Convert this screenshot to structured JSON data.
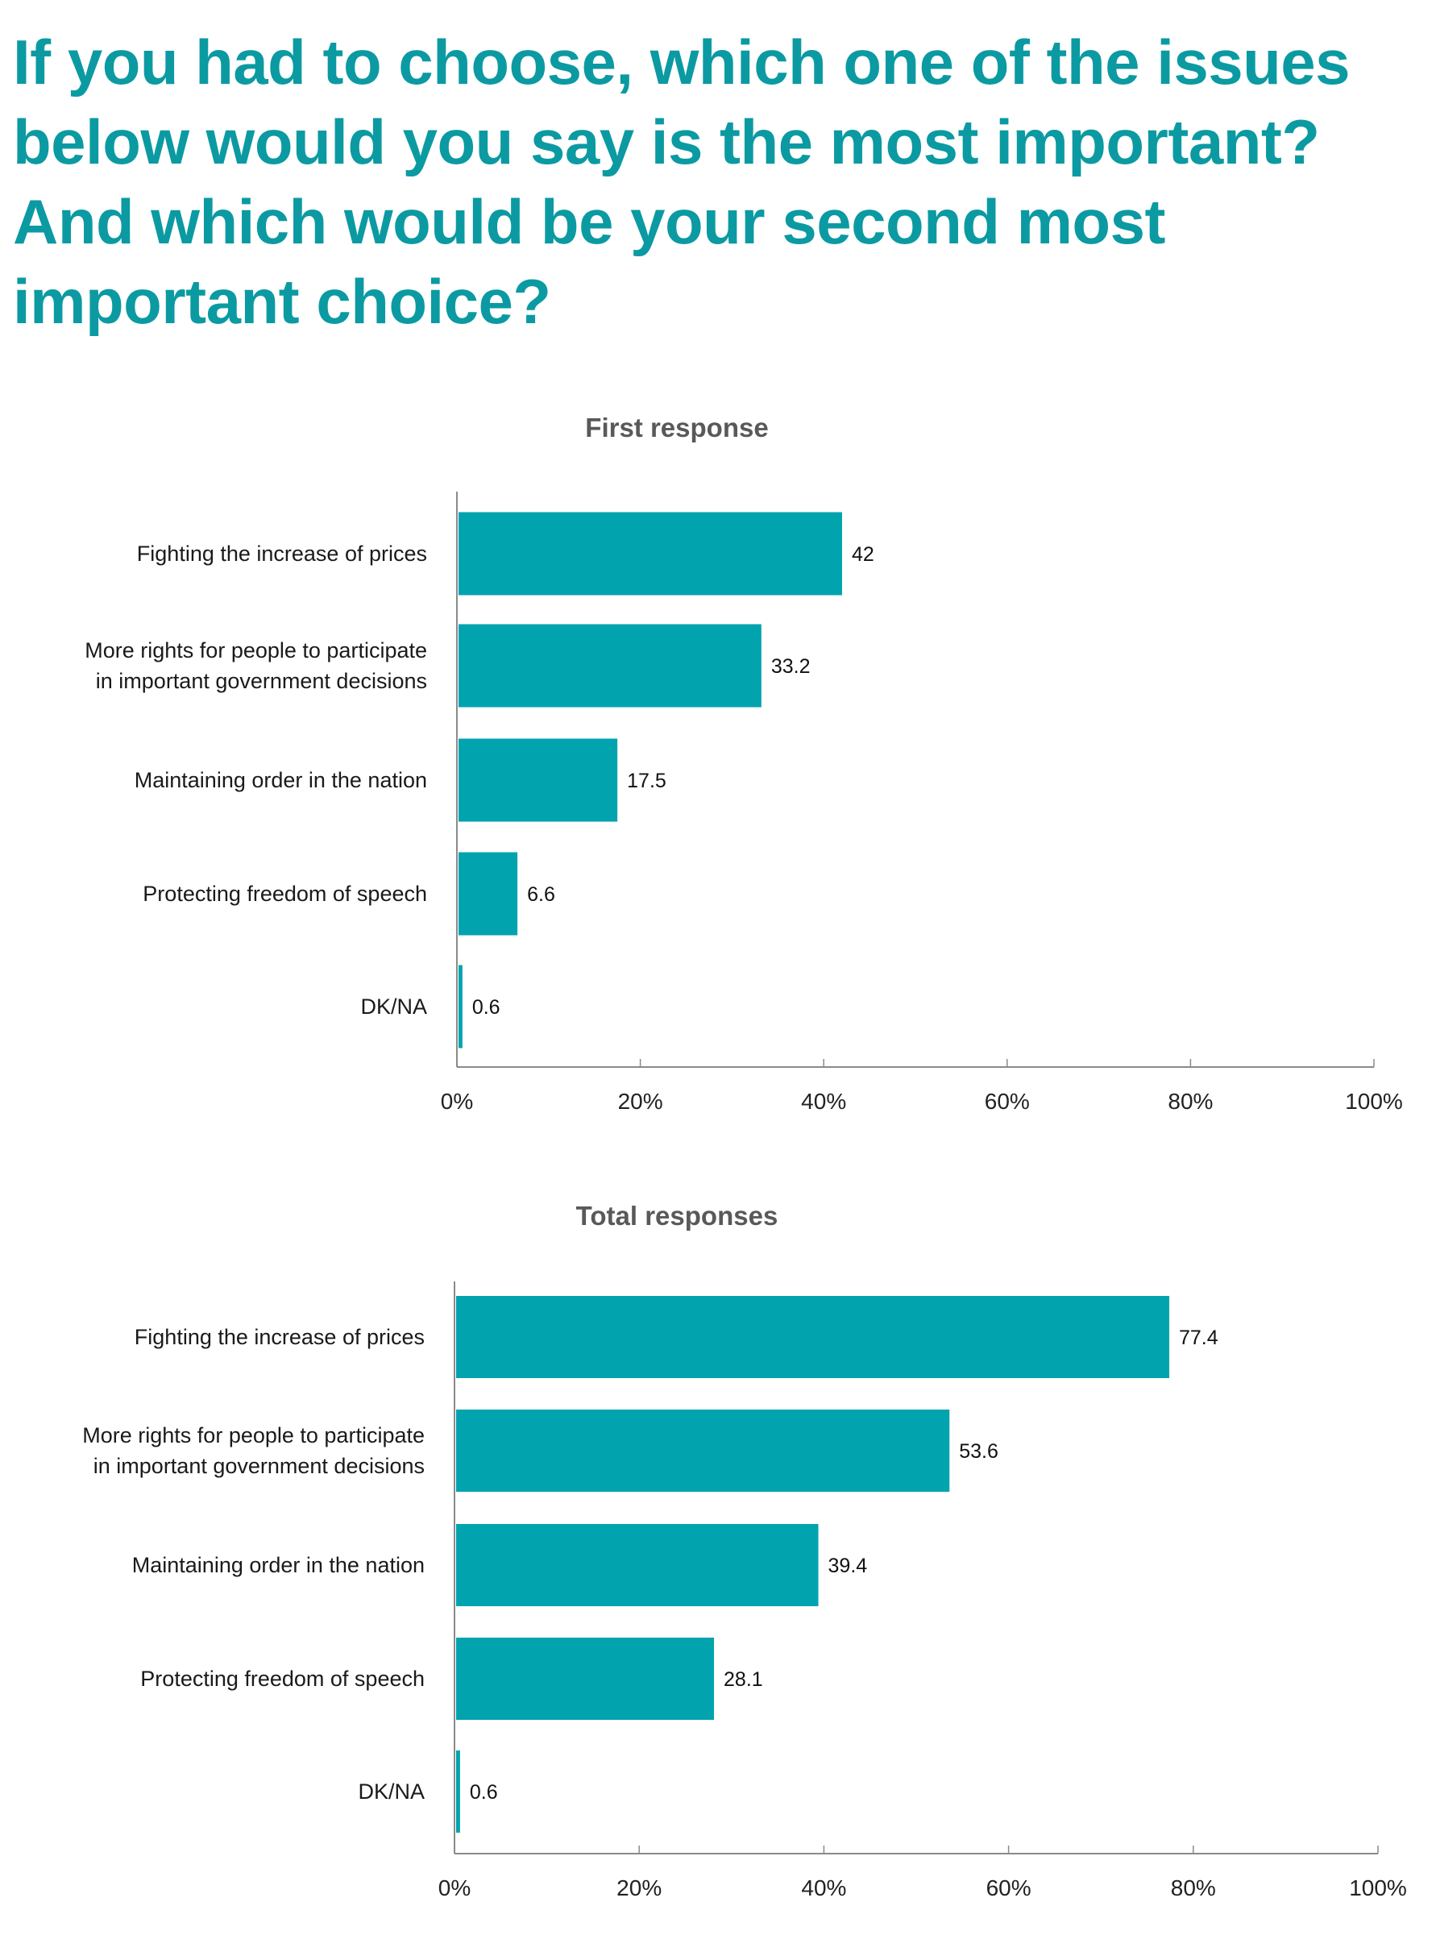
{
  "page": {
    "title_lines": [
      "If you had to choose, which one of the issues",
      "below would you say is the most important?",
      "And which would be your second most",
      "important choice?"
    ],
    "accent_color": "#00A3AE"
  },
  "chart_data": [
    {
      "type": "bar",
      "orientation": "horizontal",
      "title": "First response",
      "categories": [
        [
          "Fighting the increase of prices"
        ],
        [
          "More rights for people to participate",
          "in important government decisions"
        ],
        [
          "Maintaining order in the nation"
        ],
        [
          "Protecting freedom of speech"
        ],
        [
          "DK/NA"
        ]
      ],
      "values": [
        42,
        33.2,
        17.5,
        6.6,
        0.6
      ],
      "value_labels": [
        "42",
        "33.2",
        "17.5",
        "6.6",
        "0.6"
      ],
      "xlim": [
        0,
        100
      ],
      "xticks": [
        "0%",
        "20%",
        "40%",
        "60%",
        "80%",
        "100%"
      ],
      "xlabel": "",
      "ylabel": "",
      "grid": false,
      "bar_color": "#00A3AE"
    },
    {
      "type": "bar",
      "orientation": "horizontal",
      "title": "Total responses",
      "categories": [
        [
          "Fighting the increase of prices"
        ],
        [
          "More rights for people to participate",
          "in important government decisions"
        ],
        [
          "Maintaining order in the nation"
        ],
        [
          "Protecting freedom of speech"
        ],
        [
          "DK/NA"
        ]
      ],
      "values": [
        77.4,
        53.6,
        39.4,
        28.1,
        0.6
      ],
      "value_labels": [
        "77.4",
        "53.6",
        "39.4",
        "28.1",
        "0.6"
      ],
      "xlim": [
        0,
        100
      ],
      "xticks": [
        "0%",
        "20%",
        "40%",
        "60%",
        "80%",
        "100%"
      ],
      "xlabel": "",
      "ylabel": "",
      "grid": false,
      "bar_color": "#00A3AE"
    }
  ]
}
